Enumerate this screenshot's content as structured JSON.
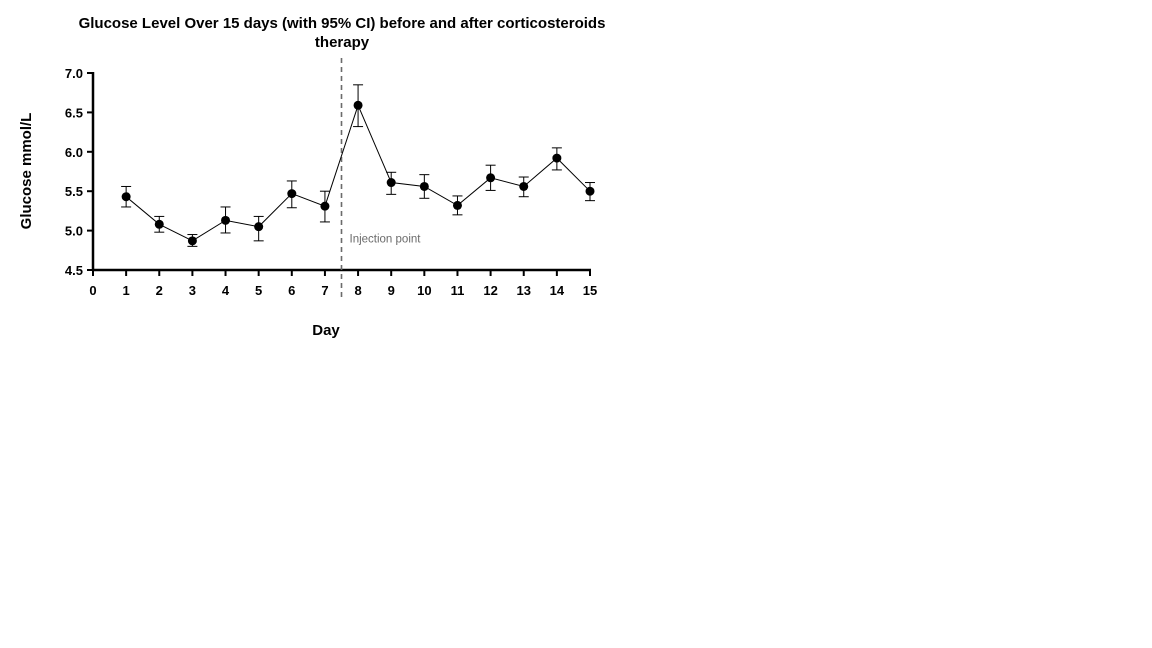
{
  "chart_data": {
    "type": "line",
    "title_line1": "Glucose Level Over 15 days (with 95% CI) before and after corticosteroids",
    "title_line2": "therapy",
    "xlabel": "Day",
    "ylabel": "Glucose mmol/L",
    "xlim": [
      0,
      15
    ],
    "ylim": [
      4.5,
      7.0
    ],
    "x_ticks": [
      "0",
      "1",
      "2",
      "3",
      "4",
      "5",
      "6",
      "7",
      "8",
      "9",
      "10",
      "11",
      "12",
      "13",
      "14",
      "15"
    ],
    "y_ticks": [
      "4.5",
      "5.0",
      "5.5",
      "6.0",
      "6.5",
      "7.0"
    ],
    "grid": false,
    "series": [
      {
        "x": [
          1,
          2,
          3,
          4,
          5,
          6,
          7,
          8,
          9,
          10,
          11,
          12,
          13,
          14,
          15
        ],
        "values": [
          5.43,
          5.08,
          4.87,
          5.13,
          5.05,
          5.47,
          5.31,
          6.59,
          5.61,
          5.56,
          5.32,
          5.67,
          5.56,
          5.92,
          5.5
        ],
        "ci_low": [
          5.3,
          4.98,
          4.8,
          4.97,
          4.87,
          5.29,
          5.11,
          6.32,
          5.46,
          5.41,
          5.2,
          5.51,
          5.43,
          5.77,
          5.38
        ],
        "ci_high": [
          5.56,
          5.18,
          4.95,
          5.3,
          5.18,
          5.63,
          5.5,
          6.85,
          5.74,
          5.71,
          5.44,
          5.83,
          5.68,
          6.05,
          5.61
        ],
        "color": "#000000"
      }
    ],
    "annotations": [
      {
        "text": "Injection point",
        "x": 7.5,
        "type": "vertical-dashed-line",
        "color": "#6b6b6b"
      }
    ]
  }
}
